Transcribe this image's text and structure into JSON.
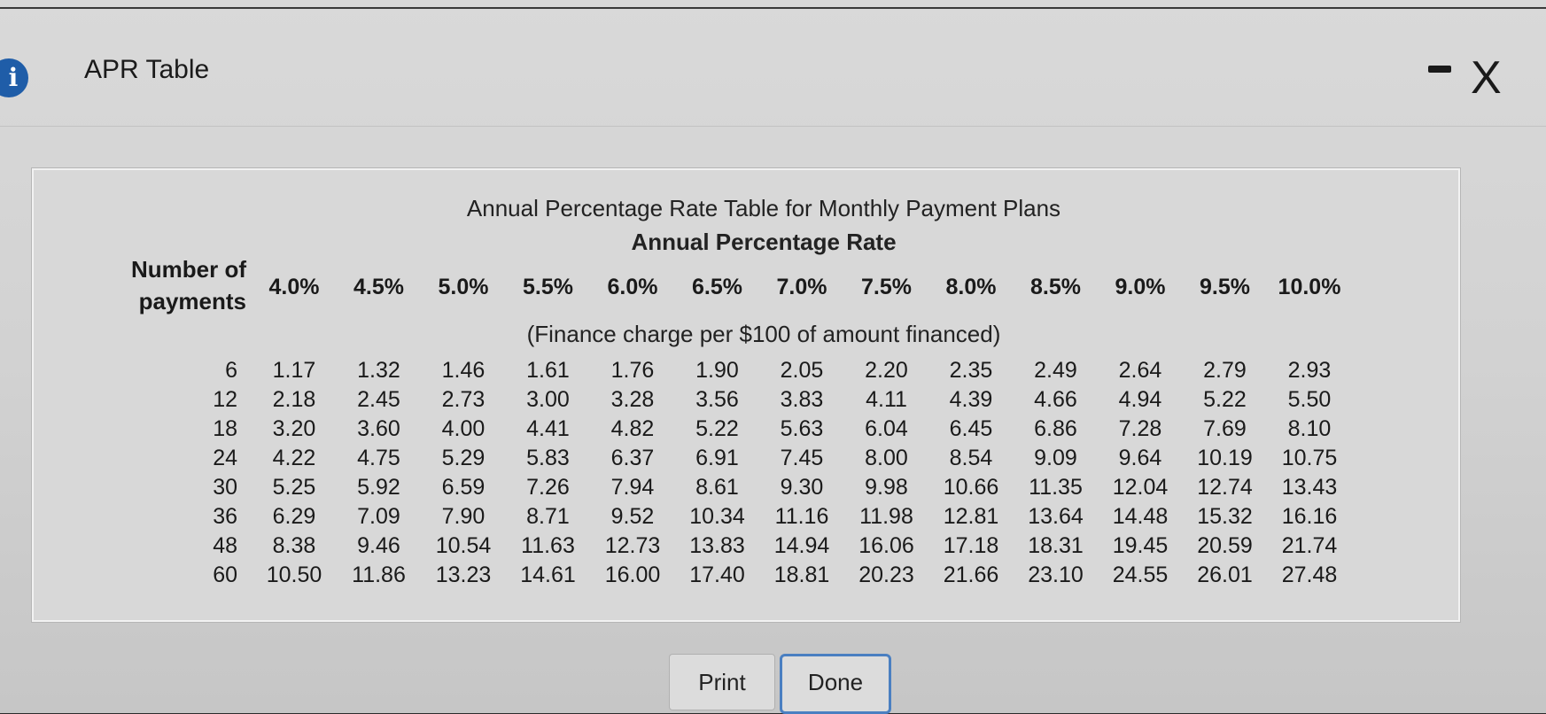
{
  "window": {
    "title": "APR Table",
    "minimize_label": "",
    "close_label": "X"
  },
  "table": {
    "caption": "Annual Percentage Rate Table for Monthly Payment Plans",
    "subcaption": "Annual Percentage Rate",
    "row_header_line1": "Number of",
    "row_header_line2": "payments",
    "note": "(Finance charge per $100 of amount financed)",
    "columns": [
      "4.0%",
      "4.5%",
      "5.0%",
      "5.5%",
      "6.0%",
      "6.5%",
      "7.0%",
      "7.5%",
      "8.0%",
      "8.5%",
      "9.0%",
      "9.5%",
      "10.0%"
    ],
    "rows": [
      {
        "n": "6",
        "values": [
          "1.17",
          "1.32",
          "1.46",
          "1.61",
          "1.76",
          "1.90",
          "2.05",
          "2.20",
          "2.35",
          "2.49",
          "2.64",
          "2.79",
          "2.93"
        ]
      },
      {
        "n": "12",
        "values": [
          "2.18",
          "2.45",
          "2.73",
          "3.00",
          "3.28",
          "3.56",
          "3.83",
          "4.11",
          "4.39",
          "4.66",
          "4.94",
          "5.22",
          "5.50"
        ]
      },
      {
        "n": "18",
        "values": [
          "3.20",
          "3.60",
          "4.00",
          "4.41",
          "4.82",
          "5.22",
          "5.63",
          "6.04",
          "6.45",
          "6.86",
          "7.28",
          "7.69",
          "8.10"
        ]
      },
      {
        "n": "24",
        "values": [
          "4.22",
          "4.75",
          "5.29",
          "5.83",
          "6.37",
          "6.91",
          "7.45",
          "8.00",
          "8.54",
          "9.09",
          "9.64",
          "10.19",
          "10.75"
        ]
      },
      {
        "n": "30",
        "values": [
          "5.25",
          "5.92",
          "6.59",
          "7.26",
          "7.94",
          "8.61",
          "9.30",
          "9.98",
          "10.66",
          "11.35",
          "12.04",
          "12.74",
          "13.43"
        ]
      },
      {
        "n": "36",
        "values": [
          "6.29",
          "7.09",
          "7.90",
          "8.71",
          "9.52",
          "10.34",
          "11.16",
          "11.98",
          "12.81",
          "13.64",
          "14.48",
          "15.32",
          "16.16"
        ]
      },
      {
        "n": "48",
        "values": [
          "8.38",
          "9.46",
          "10.54",
          "11.63",
          "12.73",
          "13.83",
          "14.94",
          "16.06",
          "17.18",
          "18.31",
          "19.45",
          "20.59",
          "21.74"
        ]
      },
      {
        "n": "60",
        "values": [
          "10.50",
          "11.86",
          "13.23",
          "14.61",
          "16.00",
          "17.40",
          "18.81",
          "20.23",
          "21.66",
          "23.10",
          "24.55",
          "26.01",
          "27.48"
        ]
      }
    ]
  },
  "buttons": {
    "print": "Print",
    "done": "Done"
  }
}
